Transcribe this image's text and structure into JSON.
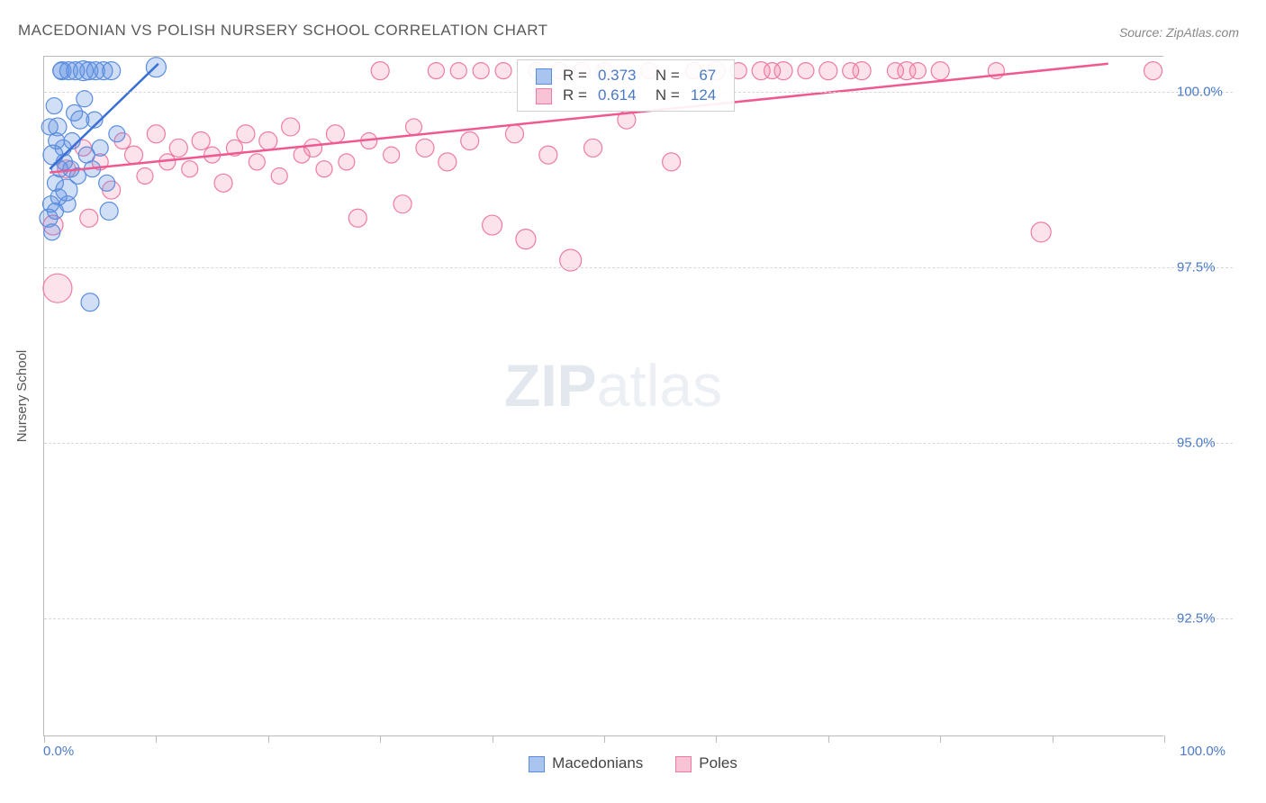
{
  "title": "MACEDONIAN VS POLISH NURSERY SCHOOL CORRELATION CHART",
  "source_label": "Source: ZipAtlas.com",
  "y_axis_label": "Nursery School",
  "watermark": {
    "bold": "ZIP",
    "rest": "atlas"
  },
  "chart": {
    "type": "scatter",
    "xlim": [
      0,
      100
    ],
    "ylim": [
      90.8,
      100.5
    ],
    "x_ticks": [
      0,
      10,
      20,
      30,
      40,
      50,
      60,
      70,
      80,
      90,
      100
    ],
    "x_tick_labels": {
      "0": "0.0%",
      "100": "100.0%"
    },
    "y_gridlines": [
      92.5,
      95.0,
      97.5,
      100.0
    ],
    "y_tick_labels": [
      "92.5%",
      "95.0%",
      "97.5%",
      "100.0%"
    ],
    "background_color": "#ffffff",
    "grid_color": "#d8d8d8",
    "series": [
      {
        "name": "Macedonians",
        "marker_color": "#5a8de0",
        "marker_fill": "rgba(90,141,224,0.28)",
        "marker_stroke": "#5a8de0",
        "line_color": "#3a6fd6",
        "line_width": 2.5,
        "swatch_fill": "#a9c4ef",
        "swatch_border": "#5a8de0",
        "R": "0.373",
        "N": "67",
        "trend": {
          "x1": 0.5,
          "y1": 98.9,
          "x2": 10.2,
          "y2": 100.4
        },
        "points": [
          {
            "x": 0.4,
            "y": 98.2,
            "r": 10
          },
          {
            "x": 0.6,
            "y": 98.4,
            "r": 9
          },
          {
            "x": 0.8,
            "y": 99.1,
            "r": 11
          },
          {
            "x": 1.0,
            "y": 98.7,
            "r": 9
          },
          {
            "x": 1.2,
            "y": 99.5,
            "r": 10
          },
          {
            "x": 1.4,
            "y": 98.9,
            "r": 9
          },
          {
            "x": 1.6,
            "y": 100.3,
            "r": 10
          },
          {
            "x": 1.8,
            "y": 99.0,
            "r": 9
          },
          {
            "x": 2.0,
            "y": 98.6,
            "r": 12
          },
          {
            "x": 2.2,
            "y": 100.3,
            "r": 10
          },
          {
            "x": 2.5,
            "y": 99.3,
            "r": 9
          },
          {
            "x": 2.8,
            "y": 100.3,
            "r": 10
          },
          {
            "x": 3.0,
            "y": 98.8,
            "r": 9
          },
          {
            "x": 3.2,
            "y": 99.6,
            "r": 10
          },
          {
            "x": 3.5,
            "y": 100.3,
            "r": 11
          },
          {
            "x": 3.8,
            "y": 99.1,
            "r": 9
          },
          {
            "x": 4.0,
            "y": 100.3,
            "r": 10
          },
          {
            "x": 4.3,
            "y": 98.9,
            "r": 9
          },
          {
            "x": 4.6,
            "y": 100.3,
            "r": 10
          },
          {
            "x": 5.0,
            "y": 99.2,
            "r": 9
          },
          {
            "x": 5.3,
            "y": 100.3,
            "r": 10
          },
          {
            "x": 5.6,
            "y": 98.7,
            "r": 9
          },
          {
            "x": 6.0,
            "y": 100.3,
            "r": 10
          },
          {
            "x": 6.5,
            "y": 99.4,
            "r": 9
          },
          {
            "x": 1.0,
            "y": 98.3,
            "r": 9
          },
          {
            "x": 1.3,
            "y": 98.5,
            "r": 9
          },
          {
            "x": 1.7,
            "y": 99.2,
            "r": 9
          },
          {
            "x": 2.1,
            "y": 98.4,
            "r": 9
          },
          {
            "x": 2.4,
            "y": 98.9,
            "r": 9
          },
          {
            "x": 2.7,
            "y": 99.7,
            "r": 9
          },
          {
            "x": 0.9,
            "y": 99.8,
            "r": 9
          },
          {
            "x": 1.5,
            "y": 100.3,
            "r": 9
          },
          {
            "x": 0.7,
            "y": 98.0,
            "r": 9
          },
          {
            "x": 1.1,
            "y": 99.3,
            "r": 9
          },
          {
            "x": 3.6,
            "y": 99.9,
            "r": 9
          },
          {
            "x": 4.5,
            "y": 99.6,
            "r": 9
          },
          {
            "x": 5.8,
            "y": 98.3,
            "r": 10
          },
          {
            "x": 4.1,
            "y": 97.0,
            "r": 10
          },
          {
            "x": 0.5,
            "y": 99.5,
            "r": 9
          },
          {
            "x": 10.0,
            "y": 100.35,
            "r": 11
          }
        ]
      },
      {
        "name": "Poles",
        "marker_color": "#ef7ba3",
        "marker_fill": "rgba(239,123,163,0.22)",
        "marker_stroke": "#ef7ba3",
        "line_color": "#ef5990",
        "line_width": 2.5,
        "swatch_fill": "#f8c3d4",
        "swatch_border": "#ef7ba3",
        "R": "0.614",
        "N": "124",
        "trend": {
          "x1": 0.5,
          "y1": 98.85,
          "x2": 95,
          "y2": 100.4
        },
        "points": [
          {
            "x": 1.2,
            "y": 97.2,
            "r": 16
          },
          {
            "x": 0.8,
            "y": 98.1,
            "r": 11
          },
          {
            "x": 2.0,
            "y": 98.9,
            "r": 10
          },
          {
            "x": 3.5,
            "y": 99.2,
            "r": 9
          },
          {
            "x": 4.0,
            "y": 98.2,
            "r": 10
          },
          {
            "x": 5.0,
            "y": 99.0,
            "r": 9
          },
          {
            "x": 6.0,
            "y": 98.6,
            "r": 10
          },
          {
            "x": 7.0,
            "y": 99.3,
            "r": 9
          },
          {
            "x": 8.0,
            "y": 99.1,
            "r": 10
          },
          {
            "x": 9.0,
            "y": 98.8,
            "r": 9
          },
          {
            "x": 10.0,
            "y": 99.4,
            "r": 10
          },
          {
            "x": 11.0,
            "y": 99.0,
            "r": 9
          },
          {
            "x": 12.0,
            "y": 99.2,
            "r": 10
          },
          {
            "x": 13.0,
            "y": 98.9,
            "r": 9
          },
          {
            "x": 14.0,
            "y": 99.3,
            "r": 10
          },
          {
            "x": 15.0,
            "y": 99.1,
            "r": 9
          },
          {
            "x": 16.0,
            "y": 98.7,
            "r": 10
          },
          {
            "x": 17.0,
            "y": 99.2,
            "r": 9
          },
          {
            "x": 18.0,
            "y": 99.4,
            "r": 10
          },
          {
            "x": 19.0,
            "y": 99.0,
            "r": 9
          },
          {
            "x": 20.0,
            "y": 99.3,
            "r": 10
          },
          {
            "x": 21.0,
            "y": 98.8,
            "r": 9
          },
          {
            "x": 22.0,
            "y": 99.5,
            "r": 10
          },
          {
            "x": 23.0,
            "y": 99.1,
            "r": 9
          },
          {
            "x": 24.0,
            "y": 99.2,
            "r": 10
          },
          {
            "x": 25.0,
            "y": 98.9,
            "r": 9
          },
          {
            "x": 26.0,
            "y": 99.4,
            "r": 10
          },
          {
            "x": 27.0,
            "y": 99.0,
            "r": 9
          },
          {
            "x": 28.0,
            "y": 98.2,
            "r": 10
          },
          {
            "x": 29.0,
            "y": 99.3,
            "r": 9
          },
          {
            "x": 30.0,
            "y": 100.3,
            "r": 10
          },
          {
            "x": 31.0,
            "y": 99.1,
            "r": 9
          },
          {
            "x": 32.0,
            "y": 98.4,
            "r": 10
          },
          {
            "x": 33.0,
            "y": 99.5,
            "r": 9
          },
          {
            "x": 34.0,
            "y": 99.2,
            "r": 10
          },
          {
            "x": 35.0,
            "y": 100.3,
            "r": 9
          },
          {
            "x": 36.0,
            "y": 99.0,
            "r": 10
          },
          {
            "x": 37.0,
            "y": 100.3,
            "r": 9
          },
          {
            "x": 38.0,
            "y": 99.3,
            "r": 10
          },
          {
            "x": 39.0,
            "y": 100.3,
            "r": 9
          },
          {
            "x": 40.0,
            "y": 98.1,
            "r": 11
          },
          {
            "x": 41.0,
            "y": 100.3,
            "r": 9
          },
          {
            "x": 42.0,
            "y": 99.4,
            "r": 10
          },
          {
            "x": 43.0,
            "y": 97.9,
            "r": 11
          },
          {
            "x": 44.0,
            "y": 100.3,
            "r": 9
          },
          {
            "x": 45.0,
            "y": 99.1,
            "r": 10
          },
          {
            "x": 46.0,
            "y": 100.3,
            "r": 9
          },
          {
            "x": 47.0,
            "y": 97.6,
            "r": 12
          },
          {
            "x": 48.0,
            "y": 100.3,
            "r": 9
          },
          {
            "x": 49.0,
            "y": 99.2,
            "r": 10
          },
          {
            "x": 50.0,
            "y": 100.3,
            "r": 9
          },
          {
            "x": 52.0,
            "y": 99.6,
            "r": 10
          },
          {
            "x": 54.0,
            "y": 100.3,
            "r": 9
          },
          {
            "x": 56.0,
            "y": 99.0,
            "r": 10
          },
          {
            "x": 58.0,
            "y": 100.3,
            "r": 9
          },
          {
            "x": 60.0,
            "y": 100.3,
            "r": 10
          },
          {
            "x": 62.0,
            "y": 100.3,
            "r": 9
          },
          {
            "x": 64.0,
            "y": 100.3,
            "r": 10
          },
          {
            "x": 65.0,
            "y": 100.3,
            "r": 9
          },
          {
            "x": 66.0,
            "y": 100.3,
            "r": 10
          },
          {
            "x": 68.0,
            "y": 100.3,
            "r": 9
          },
          {
            "x": 70.0,
            "y": 100.3,
            "r": 10
          },
          {
            "x": 72.0,
            "y": 100.3,
            "r": 9
          },
          {
            "x": 73.0,
            "y": 100.3,
            "r": 10
          },
          {
            "x": 76.0,
            "y": 100.3,
            "r": 9
          },
          {
            "x": 77.0,
            "y": 100.3,
            "r": 10
          },
          {
            "x": 78.0,
            "y": 100.3,
            "r": 9
          },
          {
            "x": 80.0,
            "y": 100.3,
            "r": 10
          },
          {
            "x": 85.0,
            "y": 100.3,
            "r": 9
          },
          {
            "x": 89.0,
            "y": 98.0,
            "r": 11
          },
          {
            "x": 99.0,
            "y": 100.3,
            "r": 10
          }
        ]
      }
    ]
  },
  "legend_bottom": [
    {
      "label": "Macedonians",
      "fill": "#a9c4ef",
      "border": "#5a8de0"
    },
    {
      "label": "Poles",
      "fill": "#f8c3d4",
      "border": "#ef7ba3"
    }
  ]
}
